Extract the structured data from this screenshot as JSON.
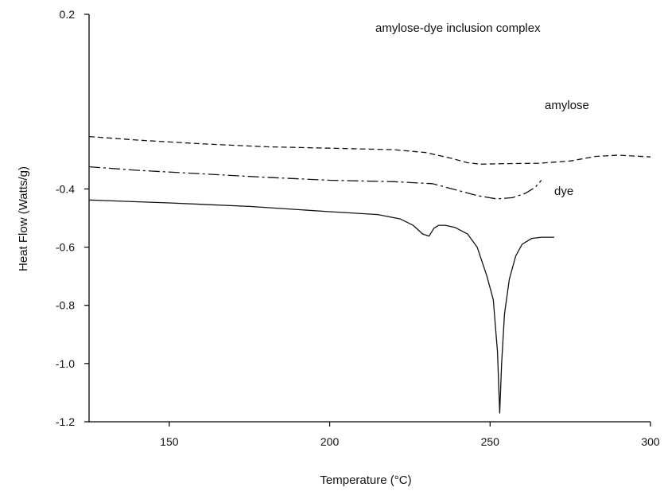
{
  "chart_data": {
    "type": "line",
    "title": "",
    "xlabel": "Temperature (°C)",
    "ylabel": "Heat Flow (Watts/g)",
    "xlim": [
      125,
      300
    ],
    "ylim": [
      -1.2,
      0.2
    ],
    "x_ticks": [
      150,
      200,
      250,
      300
    ],
    "y_ticks": [
      0.2,
      -0.4,
      -0.6,
      -0.8,
      -1.0,
      -1.2
    ],
    "x_tick_labels": [
      "150",
      "200",
      "250",
      "300"
    ],
    "y_tick_labels": [
      "0.2",
      "-0.4",
      "-0.6",
      "-0.8",
      "-1.0",
      "-1.2"
    ],
    "grid": false,
    "legend": "none",
    "series": [
      {
        "name": "amylose-dye inclusion complex",
        "line_style": "dashed",
        "x": [
          125,
          140,
          160,
          180,
          200,
          220,
          230,
          238,
          243,
          247,
          255,
          265,
          275,
          283,
          290,
          300
        ],
        "y": [
          -0.22,
          -0.232,
          -0.245,
          -0.255,
          -0.26,
          -0.265,
          -0.275,
          -0.295,
          -0.31,
          -0.315,
          -0.313,
          -0.312,
          -0.304,
          -0.288,
          -0.284,
          -0.29
        ]
      },
      {
        "name": "amylose",
        "line_style": "dash-dot",
        "x": [
          125,
          140,
          160,
          180,
          200,
          220,
          232,
          240,
          246,
          252,
          257,
          261,
          264,
          266
        ],
        "y": [
          -0.324,
          -0.336,
          -0.348,
          -0.36,
          -0.37,
          -0.375,
          -0.382,
          -0.405,
          -0.423,
          -0.434,
          -0.43,
          -0.415,
          -0.395,
          -0.37
        ]
      },
      {
        "name": "dye",
        "line_style": "solid",
        "x": [
          125,
          150,
          175,
          200,
          215,
          222,
          226,
          229,
          231,
          232.5,
          234,
          236,
          239,
          243,
          246,
          249,
          251,
          252.3,
          253,
          253.6,
          254.5,
          256,
          258,
          260,
          263,
          266,
          270
        ],
        "y": [
          -0.438,
          -0.448,
          -0.46,
          -0.478,
          -0.488,
          -0.503,
          -0.525,
          -0.555,
          -0.562,
          -0.535,
          -0.525,
          -0.525,
          -0.532,
          -0.555,
          -0.6,
          -0.7,
          -0.78,
          -0.96,
          -1.17,
          -1.0,
          -0.83,
          -0.71,
          -0.63,
          -0.59,
          -0.57,
          -0.566,
          -0.566
        ]
      }
    ]
  }
}
